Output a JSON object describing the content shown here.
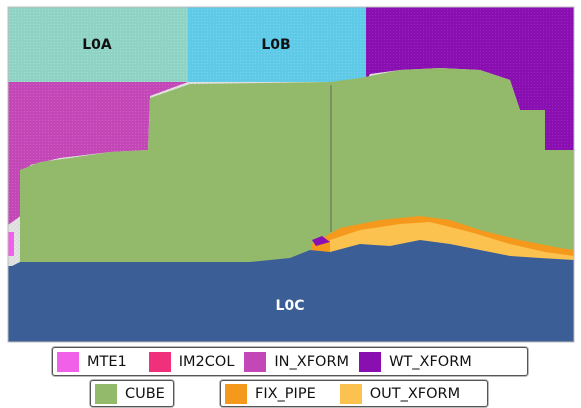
{
  "regions": {
    "l0a": "L0A",
    "l0b": "L0B",
    "l0c": "L0C"
  },
  "colors": {
    "MTE1": "#f060e8",
    "IM2COL": "#f0307a",
    "IN_XFORM": "#c447b8",
    "WT_XFORM": "#8a0fb0",
    "CUBE": "#93b96b",
    "FIX_PIPE": "#f5991d",
    "OUT_XFORM": "#fcc24f",
    "L0A_fill": "#8fd3c4",
    "L0B_fill": "#5fc9e8",
    "L0C_fill": "#3a5e95",
    "empty": "#dcdcdc"
  },
  "legend": {
    "row1": [
      {
        "label": "MTE1",
        "color": "#f060e8"
      },
      {
        "label": "IM2COL",
        "color": "#f0307a"
      },
      {
        "label": "IN_XFORM",
        "color": "#c447b8"
      },
      {
        "label": "WT_XFORM",
        "color": "#8a0fb0"
      }
    ],
    "row2a": [
      {
        "label": "CUBE",
        "color": "#93b96b"
      }
    ],
    "row2b": [
      {
        "label": "FIX_PIPE",
        "color": "#f5991d"
      },
      {
        "label": "OUT_XFORM",
        "color": "#fcc24f"
      }
    ]
  }
}
